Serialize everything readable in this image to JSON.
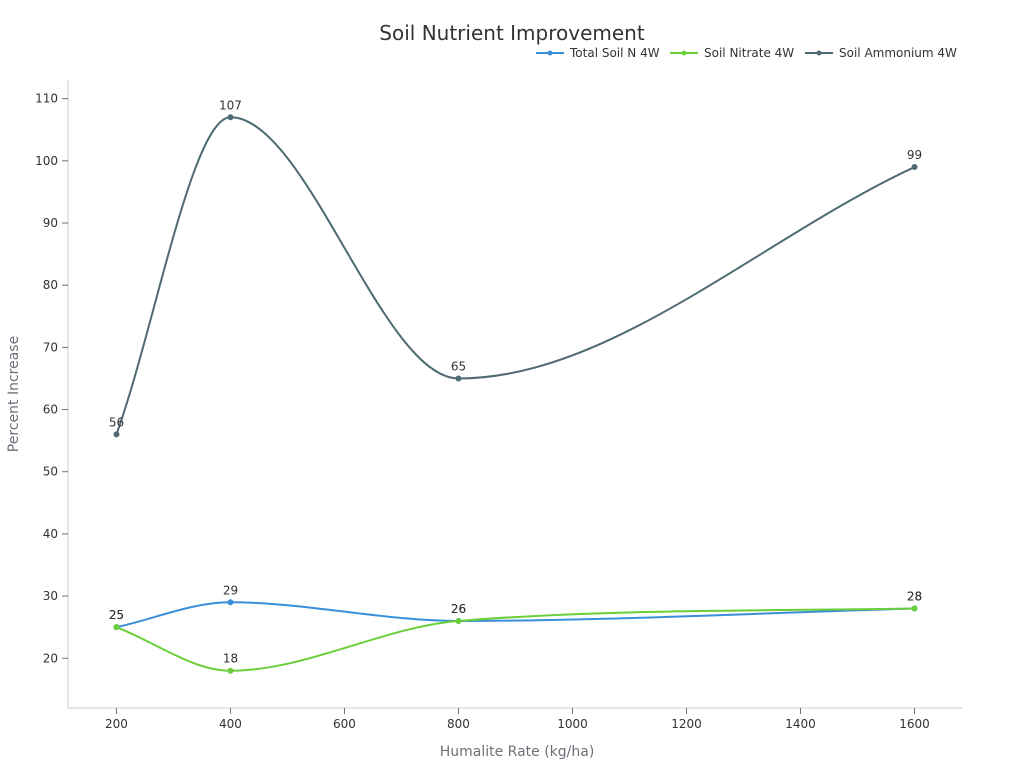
{
  "chart_data": {
    "type": "line",
    "title": "Soil Nutrient Improvement",
    "xlabel": "Humalite Rate (kg/ha)",
    "ylabel": "Percent Increase",
    "x": [
      200,
      400,
      800,
      1600
    ],
    "xlim": [
      115,
      1685
    ],
    "ylim": [
      12,
      113
    ],
    "x_ticks": [
      200,
      400,
      600,
      800,
      1000,
      1200,
      1400,
      1600
    ],
    "y_ticks": [
      20,
      30,
      40,
      50,
      60,
      70,
      80,
      90,
      100,
      110
    ],
    "legend_position": "top-right",
    "grid": false,
    "smooth": true,
    "series": [
      {
        "name": "Total Soil N 4W",
        "color": "#3a8fd9",
        "values": [
          25,
          29,
          26,
          28
        ]
      },
      {
        "name": "Soil Nitrate 4W",
        "color": "#6bcf3a",
        "values": [
          25,
          18,
          26,
          28
        ]
      },
      {
        "name": "Soil Ammonium 4W",
        "color": "#4f6a72",
        "values": [
          56,
          107,
          65,
          99
        ]
      }
    ]
  }
}
